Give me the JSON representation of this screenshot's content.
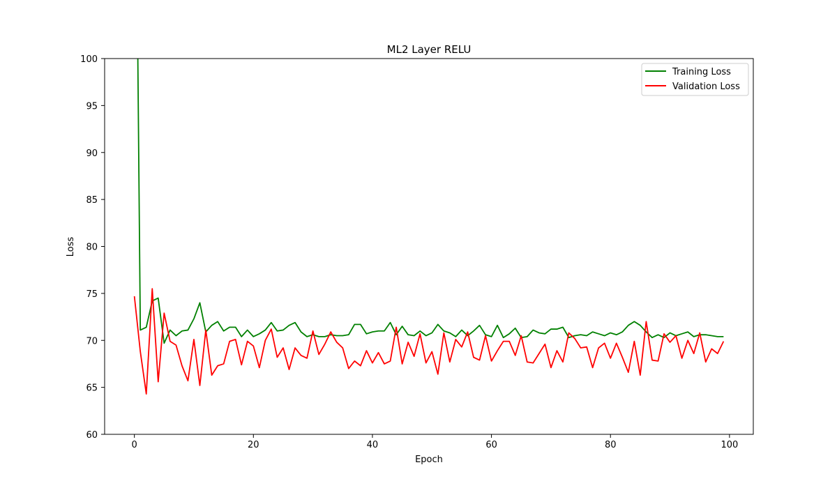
{
  "chart_data": {
    "type": "line",
    "title": "ML2 Layer RELU",
    "xlabel": "Epoch",
    "ylabel": "Loss",
    "xlim": [
      -5,
      104
    ],
    "ylim": [
      60,
      100
    ],
    "xticks": [
      0,
      20,
      40,
      60,
      80,
      100
    ],
    "yticks": [
      60,
      65,
      70,
      75,
      80,
      85,
      90,
      95,
      100
    ],
    "grid": false,
    "legend_position": "top-right",
    "x": [
      0,
      1,
      2,
      3,
      4,
      5,
      6,
      7,
      8,
      9,
      10,
      11,
      12,
      13,
      14,
      15,
      16,
      17,
      18,
      19,
      20,
      21,
      22,
      23,
      24,
      25,
      26,
      27,
      28,
      29,
      30,
      31,
      32,
      33,
      34,
      35,
      36,
      37,
      38,
      39,
      40,
      41,
      42,
      43,
      44,
      45,
      46,
      47,
      48,
      49,
      50,
      51,
      52,
      53,
      54,
      55,
      56,
      57,
      58,
      59,
      60,
      61,
      62,
      63,
      64,
      65,
      66,
      67,
      68,
      69,
      70,
      71,
      72,
      73,
      74,
      75,
      76,
      77,
      78,
      79,
      80,
      81,
      82,
      83,
      84,
      85,
      86,
      87,
      88,
      89,
      90,
      91,
      92,
      93,
      94,
      95,
      96,
      97,
      98,
      99
    ],
    "series": [
      {
        "name": "Training Loss",
        "color": "#008000",
        "values": [
          140.0,
          71.1,
          71.4,
          74.2,
          74.5,
          69.7,
          71.1,
          70.5,
          71.0,
          71.1,
          72.3,
          74.0,
          70.9,
          71.6,
          72.0,
          71.0,
          71.4,
          71.4,
          70.4,
          71.1,
          70.4,
          70.7,
          71.1,
          71.9,
          71.0,
          71.1,
          71.6,
          71.9,
          70.9,
          70.4,
          70.6,
          70.4,
          70.4,
          70.6,
          70.5,
          70.5,
          70.6,
          71.7,
          71.7,
          70.7,
          70.9,
          71.0,
          71.0,
          71.9,
          70.6,
          71.5,
          70.6,
          70.5,
          71.0,
          70.5,
          70.8,
          71.7,
          71.0,
          70.8,
          70.4,
          71.1,
          70.5,
          71.0,
          71.6,
          70.6,
          70.4,
          71.6,
          70.3,
          70.7,
          71.3,
          70.3,
          70.4,
          71.1,
          70.8,
          70.7,
          71.2,
          71.2,
          71.4,
          70.3,
          70.5,
          70.6,
          70.5,
          70.9,
          70.7,
          70.5,
          70.8,
          70.6,
          70.9,
          71.6,
          72.0,
          71.6,
          70.9,
          70.3,
          70.6,
          70.3,
          70.8,
          70.5,
          70.7,
          70.9,
          70.4,
          70.6,
          70.6,
          70.5,
          70.4,
          70.4
        ]
      },
      {
        "name": "Validation Loss",
        "color": "#ff0000",
        "values": [
          74.7,
          68.8,
          64.3,
          75.5,
          65.6,
          72.9,
          69.9,
          69.5,
          67.3,
          65.7,
          70.1,
          65.2,
          71.1,
          66.3,
          67.3,
          67.5,
          69.9,
          70.1,
          67.4,
          69.9,
          69.4,
          67.1,
          70.0,
          71.2,
          68.2,
          69.2,
          66.9,
          69.2,
          68.4,
          68.1,
          71.0,
          68.5,
          69.6,
          70.9,
          69.8,
          69.2,
          67.0,
          67.8,
          67.3,
          68.9,
          67.6,
          68.7,
          67.5,
          67.8,
          71.4,
          67.5,
          69.8,
          68.3,
          70.7,
          67.6,
          68.8,
          66.4,
          70.8,
          67.7,
          70.1,
          69.3,
          70.9,
          68.2,
          67.9,
          70.5,
          67.8,
          68.9,
          69.9,
          69.9,
          68.4,
          70.5,
          67.7,
          67.6,
          68.6,
          69.6,
          67.1,
          68.9,
          67.7,
          70.8,
          70.2,
          69.2,
          69.3,
          67.1,
          69.2,
          69.7,
          68.1,
          69.7,
          68.2,
          66.6,
          69.9,
          66.3,
          72.0,
          67.9,
          67.8,
          70.7,
          69.8,
          70.5,
          68.1,
          70.0,
          68.6,
          70.8,
          67.7,
          69.1,
          68.6,
          69.9
        ]
      }
    ]
  }
}
